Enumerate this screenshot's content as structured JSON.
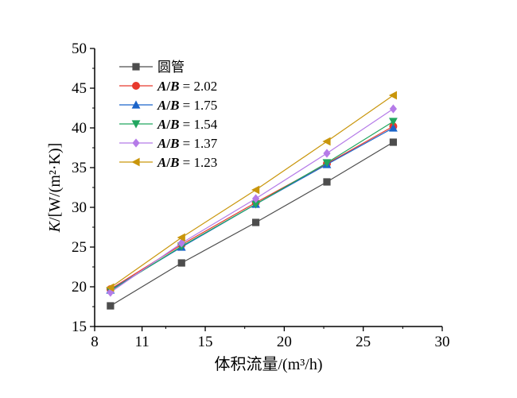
{
  "chart_data": {
    "type": "line",
    "xlabel": "体积流量/(m³/h)",
    "ylabel": "K/[W/(m²·K)]",
    "xlim": [
      8,
      30
    ],
    "ylim": [
      15,
      50
    ],
    "xticks": [
      8,
      11,
      15,
      20,
      25,
      30
    ],
    "yticks": [
      15,
      20,
      25,
      30,
      35,
      40,
      45,
      50
    ],
    "grid": false,
    "legend_position": "top-left",
    "x": [
      9.0,
      13.5,
      18.2,
      22.7,
      26.9
    ],
    "series": [
      {
        "name": "圆管",
        "values": [
          17.6,
          23.0,
          28.1,
          33.2,
          38.2
        ],
        "color": "#4d4d4d",
        "marker": "square"
      },
      {
        "name": "A/B = 2.02",
        "values": [
          19.7,
          25.3,
          30.6,
          35.5,
          40.2
        ],
        "color": "#e8392d",
        "marker": "circle"
      },
      {
        "name": "A/B = 1.75",
        "values": [
          19.6,
          25.0,
          30.4,
          35.4,
          40.0
        ],
        "color": "#1b64c9",
        "marker": "triangle-up"
      },
      {
        "name": "A/B = 1.54",
        "values": [
          19.5,
          25.1,
          30.4,
          35.6,
          40.8
        ],
        "color": "#21a65f",
        "marker": "triangle-down"
      },
      {
        "name": "A/B = 1.37",
        "values": [
          19.3,
          25.5,
          31.1,
          36.8,
          42.4
        ],
        "color": "#b57be8",
        "marker": "diamond"
      },
      {
        "name": "A/B = 1.23",
        "values": [
          19.9,
          26.2,
          32.2,
          38.3,
          44.1
        ],
        "color": "#c9960c",
        "marker": "triangle-left"
      }
    ]
  }
}
